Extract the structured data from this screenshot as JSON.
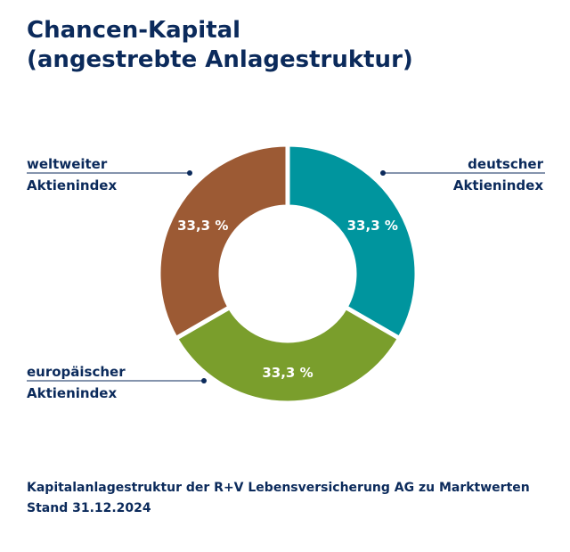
{
  "title": {
    "line1": "Chancen-Kapital",
    "line2": "(angestrebte Anlagestruktur)"
  },
  "chart_data": {
    "type": "pie",
    "title": "Chancen-Kapital (angestrebte Anlagestruktur)",
    "slices": [
      {
        "name": "deutscher Aktienindex",
        "label_line1": "deutscher",
        "label_line2": "Aktienindex",
        "value": 33.3,
        "value_label": "33,3 %",
        "color": "#00959e"
      },
      {
        "name": "europäischer Aktienindex",
        "label_line1": "europäischer",
        "label_line2": "Aktienindex",
        "value": 33.3,
        "value_label": "33,3 %",
        "color": "#7a9e2c"
      },
      {
        "name": "weltweiter Aktienindex",
        "label_line1": "weltweiter",
        "label_line2": "Aktienindex",
        "value": 33.3,
        "value_label": "33,3 %",
        "color": "#9c5a34"
      }
    ]
  },
  "footer": {
    "line1": "Kapitalanlagestruktur der R+V Lebensversicherung AG zu Marktwerten",
    "line2": "Stand 31.12.2024"
  },
  "colors": {
    "text": "#0b2a5b",
    "leader": "#0b2a5b"
  }
}
